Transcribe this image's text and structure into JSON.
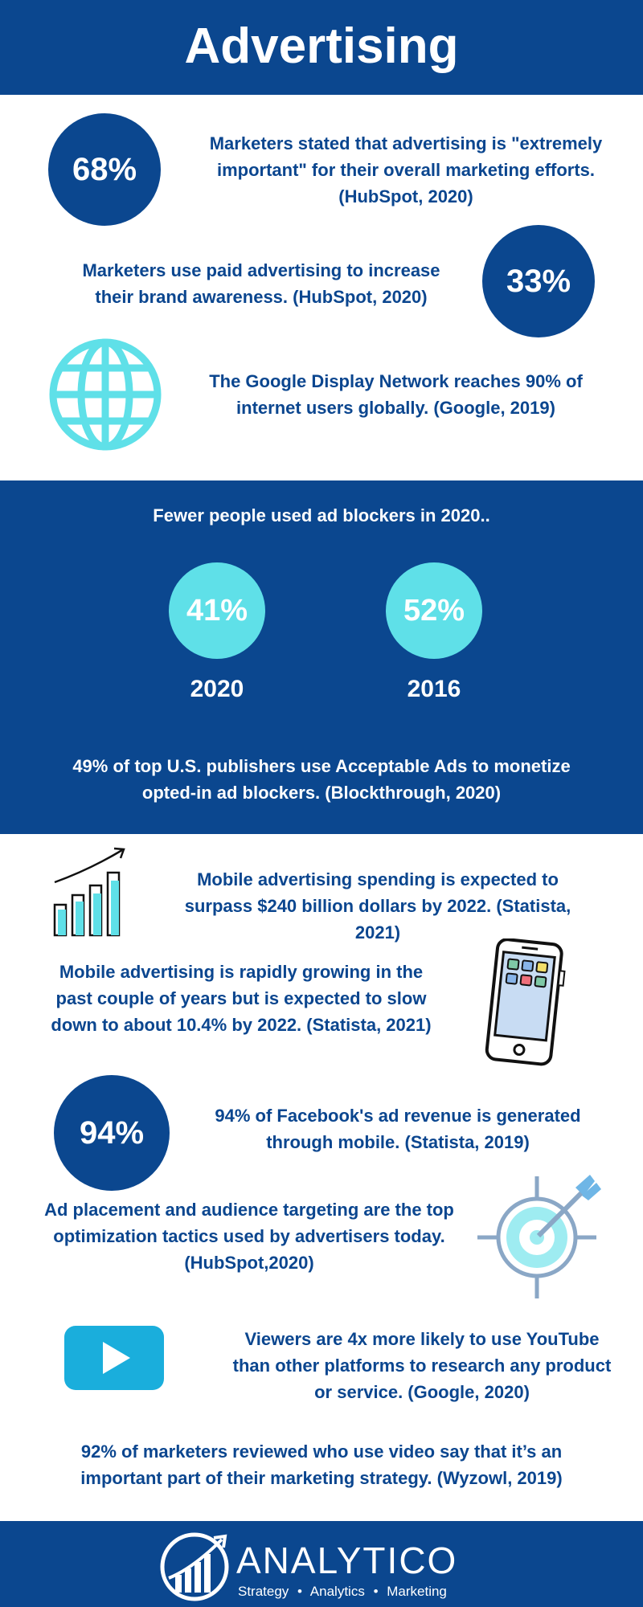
{
  "header": {
    "title": "Advertising"
  },
  "stats_top": [
    {
      "value": "68%",
      "text": "Marketers stated that advertising is \"extremely important\" for their overall marketing efforts. (HubSpot, 2020)"
    },
    {
      "value": "33%",
      "text": "Marketers use paid advertising to increase their brand awareness. (HubSpot, 2020)"
    },
    {
      "icon": "globe-icon",
      "text": "The Google Display Network reaches 90% of internet users globally. (Google, 2019)"
    }
  ],
  "adblock": {
    "heading": "Fewer people used ad blockers in 2020..",
    "items": [
      {
        "value": "41%",
        "year": "2020"
      },
      {
        "value": "52%",
        "year": "2016"
      }
    ],
    "note": "49%  of top U.S. publishers use Acceptable Ads to monetize opted-in ad blockers. (Blockthrough, 2020)"
  },
  "mobile": [
    {
      "icon": "bar-chart-growth-icon",
      "text": "Mobile advertising spending is expected to surpass $240 billion dollars by 2022. (Statista, 2021)"
    },
    {
      "icon": "smartphone-icon",
      "text": "Mobile advertising is rapidly growing in the past couple of years but is expected to slow down to about 10.4% by 2022. (Statista, 2021)"
    },
    {
      "value": "94%",
      "text": "94% of Facebook's ad revenue is generated through mobile. (Statista, 2019)"
    },
    {
      "icon": "target-icon",
      "text": "Ad placement and audience targeting are the top optimization tactics used by advertisers today. (HubSpot,2020)"
    },
    {
      "icon": "play-button-icon",
      "text": "Viewers are 4x more likely to use YouTube than other platforms to research any product or service. (Google, 2020)"
    }
  ],
  "video_note": "92% of marketers reviewed who use video say that it’s an important part of their marketing strategy. (Wyzowl, 2019)",
  "footer": {
    "brand": "ANALYTICO",
    "taglines": [
      "Strategy",
      "Analytics",
      "Marketing"
    ]
  },
  "colors": {
    "navy": "#0b478f",
    "cyan": "#5fe0e8",
    "youtube_blue": "#1aaedc"
  }
}
